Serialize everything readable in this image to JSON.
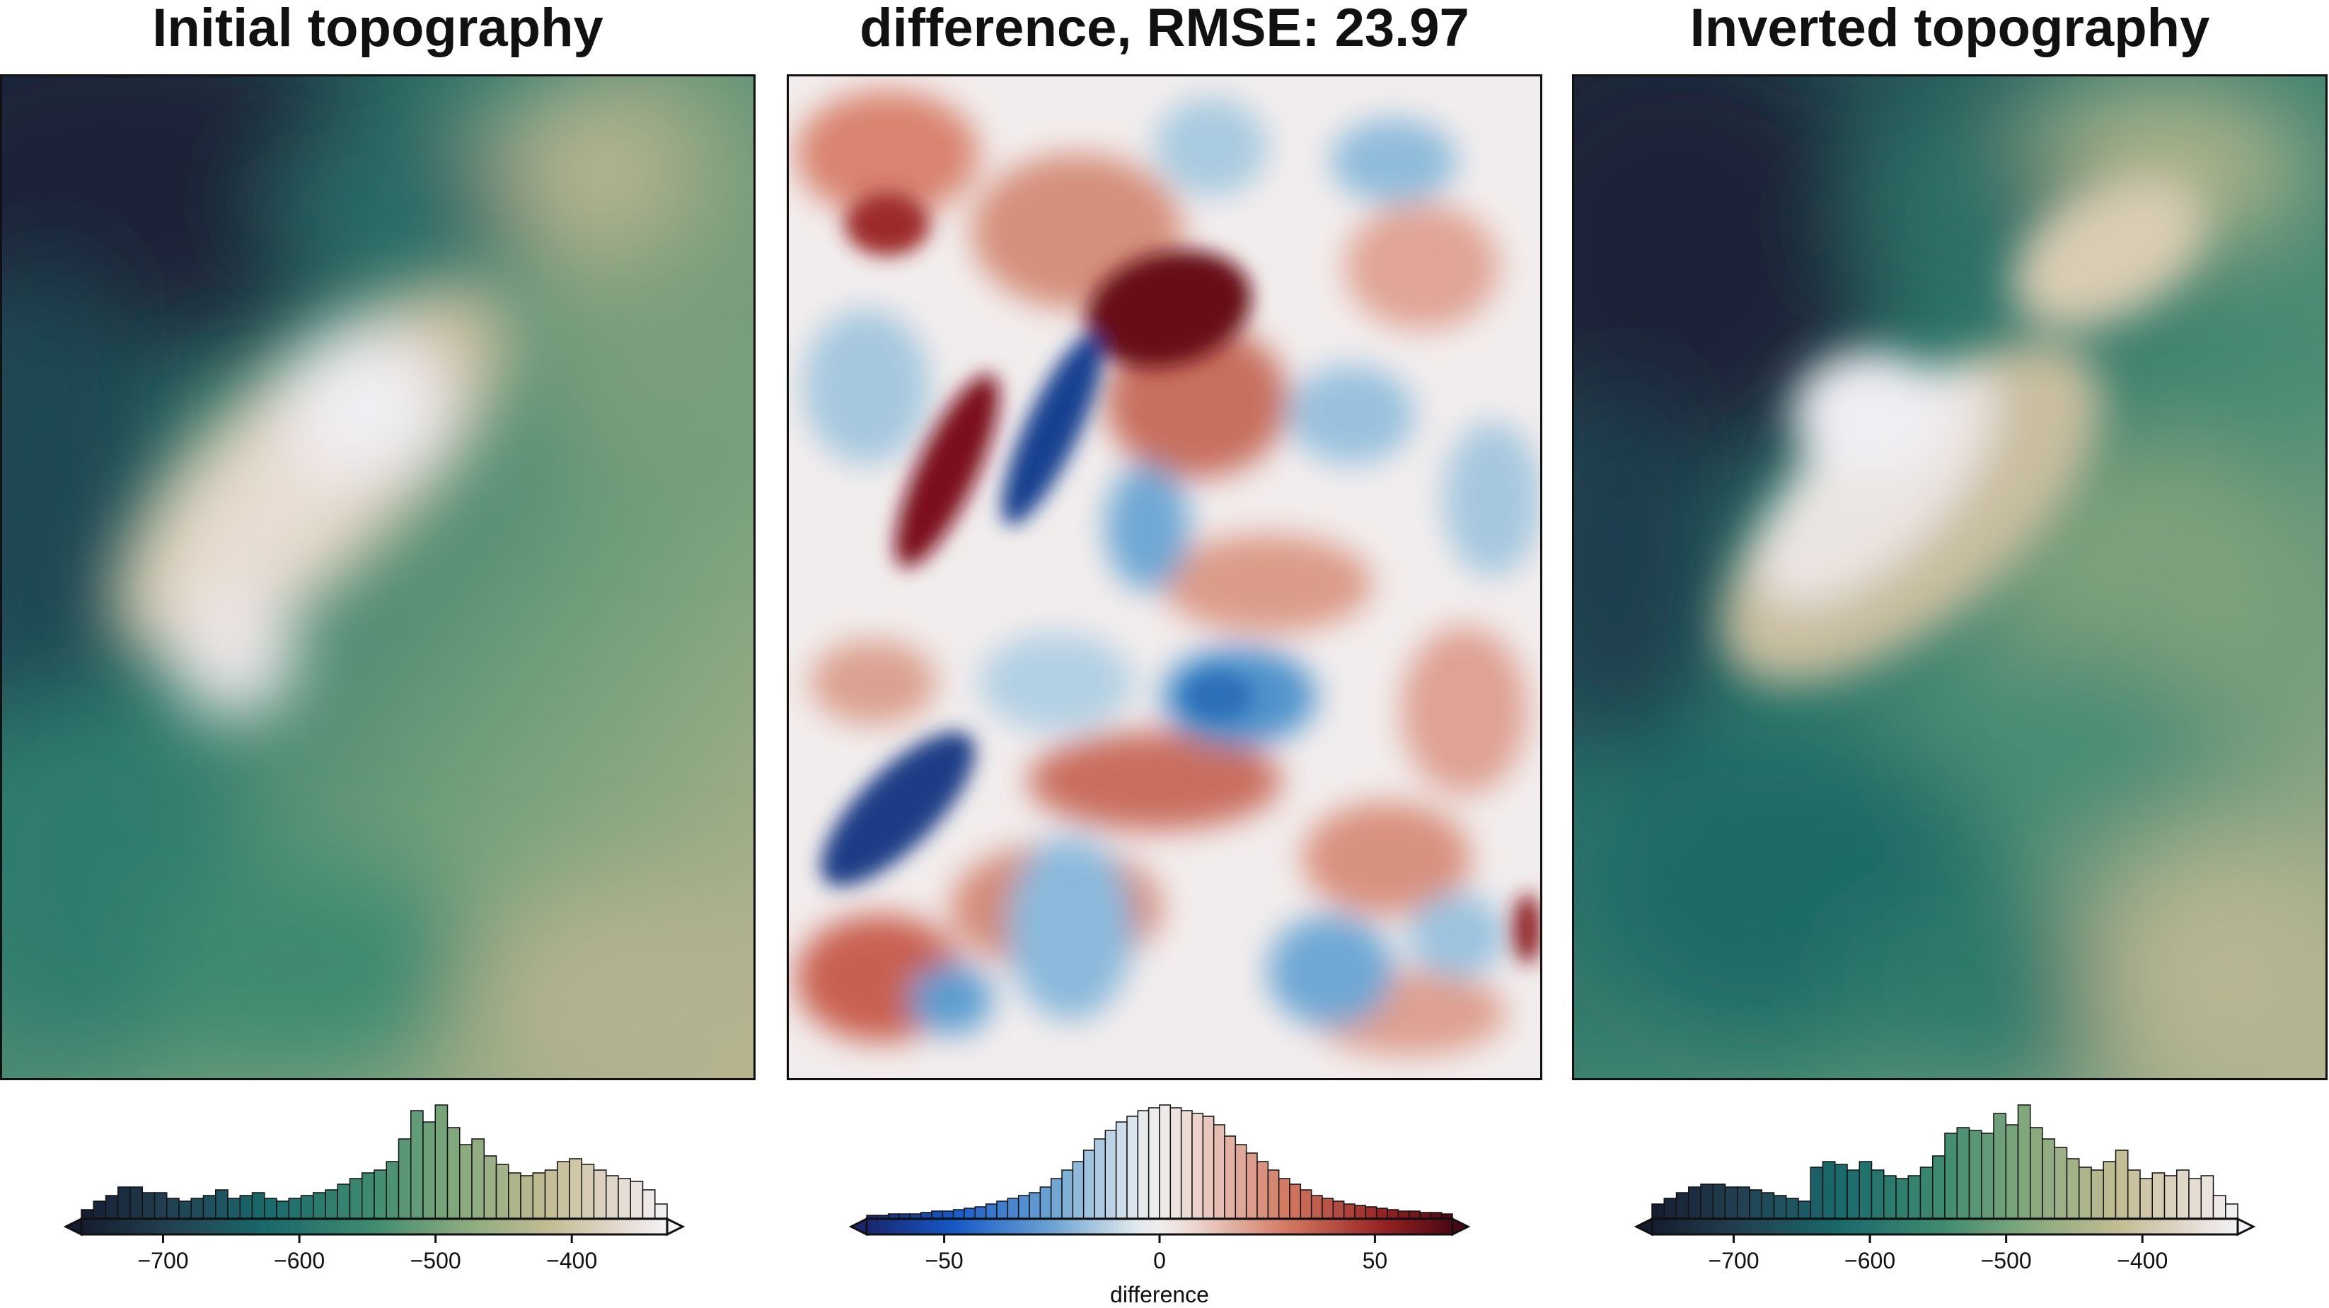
{
  "chart_data": [
    {
      "type": "heatmap",
      "title": "Initial topography",
      "colormap": "rain (dark navy - teal - green - tan - white)",
      "colorbar": {
        "ticks": [
          -700,
          -600,
          -500,
          -400
        ],
        "tick_labels": [
          "−700",
          "−600",
          "−500",
          "−400"
        ],
        "range": [
          -760,
          -330
        ],
        "label": "",
        "histogram_bins": [
          6,
          12,
          16,
          22,
          22,
          18,
          18,
          14,
          12,
          14,
          16,
          20,
          14,
          16,
          18,
          14,
          12,
          14,
          16,
          18,
          20,
          24,
          28,
          32,
          34,
          40,
          56,
          76,
          68,
          80,
          64,
          52,
          56,
          44,
          38,
          32,
          30,
          32,
          34,
          40,
          42,
          38,
          34,
          30,
          28,
          26,
          20,
          10
        ]
      }
    },
    {
      "type": "heatmap",
      "title": "difference, RMSE: 23.97",
      "colormap": "diverging blue - white - red",
      "rmse": 23.97,
      "colorbar": {
        "ticks": [
          -50,
          0,
          50
        ],
        "tick_labels": [
          "−50",
          "0",
          "50"
        ],
        "range": [
          -68,
          68
        ],
        "label": "difference",
        "histogram_bins": [
          2,
          2,
          3,
          3,
          3,
          4,
          5,
          5,
          6,
          7,
          8,
          10,
          12,
          14,
          16,
          18,
          22,
          28,
          34,
          40,
          48,
          56,
          62,
          68,
          72,
          76,
          78,
          80,
          78,
          76,
          74,
          72,
          66,
          58,
          52,
          46,
          40,
          34,
          28,
          24,
          20,
          16,
          14,
          12,
          10,
          9,
          8,
          7,
          6,
          5,
          5,
          4,
          4,
          3
        ]
      }
    },
    {
      "type": "heatmap",
      "title": "Inverted topography",
      "colormap": "rain (dark navy - teal - green - tan - white)",
      "colorbar": {
        "ticks": [
          -700,
          -600,
          -500,
          -400
        ],
        "tick_labels": [
          "−700",
          "−600",
          "−500",
          "−400"
        ],
        "range": [
          -760,
          -330
        ],
        "label": "",
        "histogram_bins": [
          10,
          14,
          18,
          22,
          24,
          24,
          22,
          22,
          20,
          18,
          16,
          14,
          12,
          36,
          40,
          38,
          34,
          40,
          34,
          30,
          28,
          30,
          36,
          44,
          60,
          64,
          62,
          60,
          74,
          66,
          80,
          64,
          56,
          50,
          42,
          36,
          34,
          40,
          48,
          34,
          28,
          32,
          30,
          34,
          28,
          30,
          16,
          10
        ]
      }
    }
  ]
}
